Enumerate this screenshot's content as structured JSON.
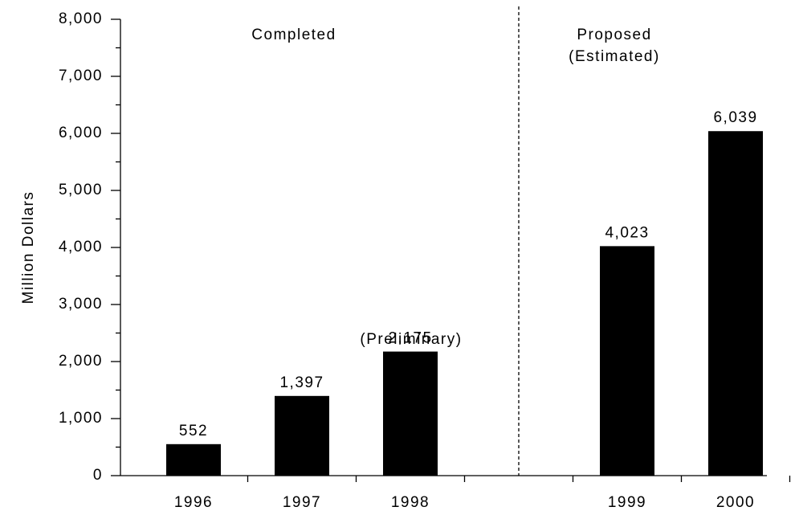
{
  "chart_data": {
    "type": "bar",
    "y_label": "Million Dollars",
    "categories": [
      "1996",
      "1997",
      "1998",
      null,
      "1999",
      "2000"
    ],
    "values": [
      552,
      1397,
      2175,
      null,
      4023,
      6039
    ],
    "value_labels": [
      "552",
      "1,397",
      "2,175",
      null,
      "4,023",
      "6,039"
    ],
    "color": "#000000",
    "ylim": [
      0,
      8000
    ],
    "yticks": [
      0,
      {
        "value": 1000,
        "label": "1,000"
      },
      {
        "value": 2000,
        "label": "2,000"
      },
      {
        "value": 3000,
        "label": "3,000"
      },
      {
        "value": 4000,
        "label": "4,000"
      },
      {
        "value": 5000,
        "label": "5,000"
      },
      {
        "value": 6000,
        "label": "6,000"
      },
      {
        "value": 7000,
        "label": "7,000"
      },
      {
        "value": 8000,
        "label": "8,000"
      }
    ],
    "annotations": [
      "Completed",
      "Proposed",
      "(Estimated)",
      "(Preliminary)"
    ],
    "grid": false
  }
}
